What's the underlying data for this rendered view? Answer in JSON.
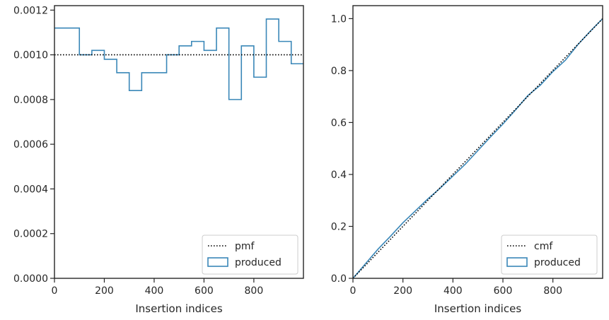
{
  "chart_data": [
    {
      "type": "line",
      "title": "",
      "xlabel": "Insertion indices",
      "ylabel": "",
      "xlim": [
        0,
        999
      ],
      "ylim": [
        0,
        0.00122
      ],
      "xticks": [
        0,
        200,
        400,
        600,
        800
      ],
      "xtick_labels": [
        "0",
        "200",
        "400",
        "600",
        "800"
      ],
      "yticks": [
        0,
        0.0002,
        0.0004,
        0.0006,
        0.0008,
        0.001,
        0.0012
      ],
      "ytick_labels": [
        "0.0000",
        "0.0002",
        "0.0004",
        "0.0006",
        "0.0008",
        "0.0010",
        "0.0012"
      ],
      "legend_position": "lower-right",
      "series": [
        {
          "name": "pmf",
          "kind": "line",
          "style": "dotted",
          "color": "#000000",
          "x": [
            0,
            999
          ],
          "y": [
            0.001,
            0.001
          ]
        },
        {
          "name": "produced",
          "kind": "step-histogram",
          "color": "#3a87b8",
          "bin_edges": [
            0,
            100,
            150,
            200,
            250,
            300,
            350,
            450,
            500,
            550,
            600,
            650,
            700,
            750,
            800,
            850,
            900,
            950,
            999
          ],
          "values": [
            0.00112,
            0.001,
            0.00102,
            0.00098,
            0.00092,
            0.00084,
            0.00092,
            0.001,
            0.00104,
            0.00106,
            0.00102,
            0.00112,
            0.0008,
            0.00104,
            0.0009,
            0.00116,
            0.00106,
            0.00096
          ]
        }
      ]
    },
    {
      "type": "line",
      "title": "",
      "xlabel": "Insertion indices",
      "ylabel": "",
      "xlim": [
        0,
        999
      ],
      "ylim": [
        0,
        1.05
      ],
      "xticks": [
        0,
        200,
        400,
        600,
        800
      ],
      "xtick_labels": [
        "0",
        "200",
        "400",
        "600",
        "800"
      ],
      "yticks": [
        0,
        0.2,
        0.4,
        0.6,
        0.8,
        1.0
      ],
      "ytick_labels": [
        "0.0",
        "0.2",
        "0.4",
        "0.6",
        "0.8",
        "1.0"
      ],
      "legend_position": "lower-right",
      "series": [
        {
          "name": "cmf",
          "kind": "line",
          "style": "dotted",
          "color": "#000000",
          "x": [
            0,
            999
          ],
          "y": [
            0,
            1.0
          ]
        },
        {
          "name": "produced",
          "kind": "line",
          "color": "#3a87b8",
          "x": [
            0,
            50,
            100,
            150,
            200,
            250,
            300,
            350,
            400,
            450,
            500,
            550,
            600,
            650,
            700,
            750,
            800,
            850,
            900,
            950,
            999
          ],
          "y": [
            0,
            0.056,
            0.112,
            0.162,
            0.214,
            0.26,
            0.306,
            0.348,
            0.394,
            0.44,
            0.492,
            0.544,
            0.594,
            0.648,
            0.704,
            0.744,
            0.796,
            0.84,
            0.9,
            0.952,
            1.0
          ]
        }
      ]
    }
  ]
}
